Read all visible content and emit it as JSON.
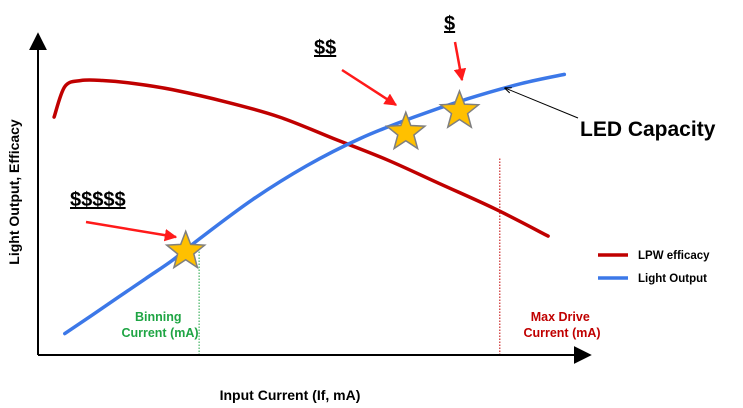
{
  "chart_data": {
    "type": "line",
    "title": "",
    "xlabel": "Input Current (If, mA)",
    "ylabel": "Light Output, Efficacy",
    "xlim": [
      0,
      100
    ],
    "ylim": [
      0,
      100
    ],
    "axis_ticks": false,
    "grid": false,
    "legend_placement": "right",
    "series": [
      {
        "name": "LPW efficacy",
        "color": "#c00000",
        "x": [
          3,
          5,
          8,
          12,
          18,
          25,
          35,
          45,
          55,
          65,
          75,
          85,
          95
        ],
        "y": [
          78,
          88,
          90,
          90,
          89,
          87,
          83,
          78,
          71,
          64,
          56,
          48,
          39
        ]
      },
      {
        "name": "Light Output",
        "color": "#3c78e8",
        "x": [
          5,
          10,
          15,
          20,
          25,
          30,
          40,
          50,
          60,
          70,
          80,
          90,
          98
        ],
        "y": [
          7,
          13,
          19,
          25,
          31,
          38,
          51,
          62,
          71,
          78,
          84,
          89,
          92
        ]
      }
    ],
    "markers": [
      {
        "x": 27.5,
        "y": 34,
        "label": "$$$$$"
      },
      {
        "x": 68.5,
        "y": 73,
        "label": "$$"
      },
      {
        "x": 78.5,
        "y": 80,
        "label": "$"
      }
    ],
    "reference_lines": [
      {
        "x": 30,
        "label_line1": "Binning",
        "label_line2": "Current (mA)",
        "color": "#1fa544"
      },
      {
        "x": 86,
        "label_line1": "Max Drive",
        "label_line2": "Current (mA)",
        "color": "#c00000"
      }
    ],
    "annotations": [
      {
        "text": "LED Capacity"
      }
    ],
    "colors": {
      "arrow": "#ff1a1a",
      "star_fill": "#ffc000",
      "star_stroke": "#7f7f7f",
      "axis": "#000000"
    }
  }
}
